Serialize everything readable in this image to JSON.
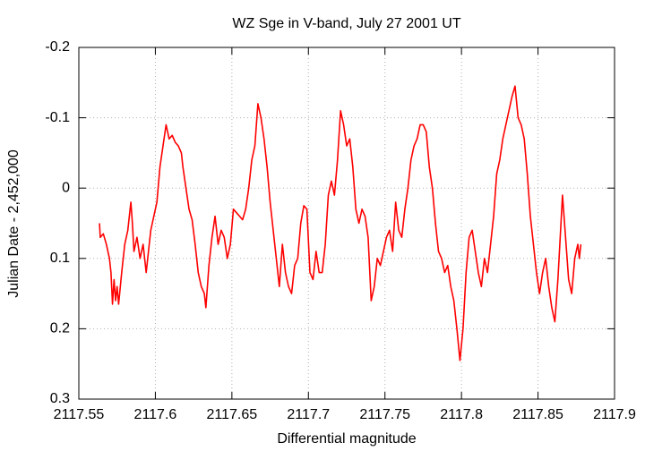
{
  "chart_data": {
    "type": "line",
    "title": "WZ Sge in V-band, July 27 2001 UT",
    "xlabel": "Differential magnitude",
    "ylabel": "Julian Date - 2,452,000",
    "xlim": [
      2117.55,
      2117.9
    ],
    "xticks": [
      2117.55,
      2117.6,
      2117.65,
      2117.7,
      2117.75,
      2117.8,
      2117.85,
      2117.9
    ],
    "ylim": [
      -0.2,
      0.3
    ],
    "yticks": [
      -0.2,
      -0.1,
      0,
      0.1,
      0.2,
      0.3
    ],
    "y_reversed": true,
    "grid": true,
    "x": [
      2117.5635,
      2117.564,
      2117.566,
      2117.568,
      2117.57,
      2117.571,
      2117.572,
      2117.573,
      2117.574,
      2117.575,
      2117.576,
      2117.578,
      2117.58,
      2117.582,
      2117.583,
      2117.584,
      2117.585,
      2117.586,
      2117.588,
      2117.59,
      2117.592,
      2117.594,
      2117.595,
      2117.597,
      2117.599,
      2117.601,
      2117.603,
      2117.605,
      2117.607,
      2117.609,
      2117.611,
      2117.613,
      2117.615,
      2117.617,
      2117.618,
      2117.62,
      2117.622,
      2117.624,
      2117.626,
      2117.628,
      2117.63,
      2117.632,
      2117.633,
      2117.635,
      2117.637,
      2117.639,
      2117.641,
      2117.643,
      2117.645,
      2117.647,
      2117.649,
      2117.651,
      2117.653,
      2117.655,
      2117.657,
      2117.659,
      2117.661,
      2117.663,
      2117.665,
      2117.667,
      2117.669,
      2117.671,
      2117.673,
      2117.675,
      2117.677,
      2117.679,
      2117.681,
      2117.683,
      2117.685,
      2117.687,
      2117.689,
      2117.691,
      2117.693,
      2117.695,
      2117.697,
      2117.699,
      2117.701,
      2117.703,
      2117.705,
      2117.707,
      2117.709,
      2117.711,
      2117.713,
      2117.715,
      2117.717,
      2117.719,
      2117.721,
      2117.723,
      2117.725,
      2117.727,
      2117.729,
      2117.731,
      2117.733,
      2117.735,
      2117.737,
      2117.739,
      2117.741,
      2117.743,
      2117.745,
      2117.747,
      2117.749,
      2117.751,
      2117.753,
      2117.755,
      2117.757,
      2117.759,
      2117.761,
      2117.763,
      2117.765,
      2117.767,
      2117.769,
      2117.771,
      2117.773,
      2117.775,
      2117.777,
      2117.779,
      2117.781,
      2117.783,
      2117.785,
      2117.787,
      2117.789,
      2117.791,
      2117.793,
      2117.795,
      2117.797,
      2117.799,
      2117.801,
      2117.803,
      2117.805,
      2117.807,
      2117.809,
      2117.811,
      2117.813,
      2117.815,
      2117.817,
      2117.819,
      2117.821,
      2117.823,
      2117.825,
      2117.827,
      2117.829,
      2117.831,
      2117.833,
      2117.835,
      2117.837,
      2117.839,
      2117.841,
      2117.843,
      2117.845,
      2117.847,
      2117.849,
      2117.851,
      2117.853,
      2117.855,
      2117.857,
      2117.859,
      2117.861,
      2117.863,
      2117.865,
      2117.866,
      2117.868,
      2117.87,
      2117.872,
      2117.874,
      2117.876,
      2117.877,
      2117.878
    ],
    "series": [
      {
        "color": "#ff0000",
        "values": [
          0.05,
          0.07,
          0.065,
          0.08,
          0.1,
          0.12,
          0.165,
          0.13,
          0.16,
          0.14,
          0.165,
          0.12,
          0.08,
          0.06,
          0.04,
          0.02,
          0.05,
          0.09,
          0.07,
          0.1,
          0.08,
          0.12,
          0.1,
          0.06,
          0.04,
          0.02,
          -0.03,
          -0.06,
          -0.09,
          -0.07,
          -0.075,
          -0.065,
          -0.06,
          -0.05,
          -0.03,
          0.0,
          0.03,
          0.045,
          0.08,
          0.12,
          0.14,
          0.15,
          0.17,
          0.11,
          0.07,
          0.04,
          0.08,
          0.06,
          0.07,
          0.1,
          0.08,
          0.03,
          0.035,
          0.04,
          0.045,
          0.03,
          0.0,
          -0.04,
          -0.06,
          -0.12,
          -0.1,
          -0.07,
          -0.03,
          0.02,
          0.06,
          0.1,
          0.14,
          0.08,
          0.12,
          0.14,
          0.15,
          0.11,
          0.1,
          0.05,
          0.025,
          0.03,
          0.12,
          0.13,
          0.09,
          0.12,
          0.12,
          0.08,
          0.01,
          -0.01,
          0.01,
          -0.04,
          -0.11,
          -0.09,
          -0.06,
          -0.07,
          -0.03,
          0.03,
          0.05,
          0.03,
          0.04,
          0.07,
          0.16,
          0.14,
          0.1,
          0.11,
          0.09,
          0.07,
          0.06,
          0.09,
          0.02,
          0.06,
          0.07,
          0.03,
          0.0,
          -0.04,
          -0.06,
          -0.07,
          -0.09,
          -0.09,
          -0.08,
          -0.03,
          0.0,
          0.05,
          0.09,
          0.1,
          0.12,
          0.11,
          0.14,
          0.16,
          0.2,
          0.245,
          0.2,
          0.12,
          0.07,
          0.06,
          0.09,
          0.12,
          0.14,
          0.1,
          0.12,
          0.08,
          0.04,
          -0.02,
          -0.04,
          -0.07,
          -0.09,
          -0.11,
          -0.13,
          -0.145,
          -0.1,
          -0.09,
          -0.07,
          -0.02,
          0.04,
          0.08,
          0.12,
          0.15,
          0.12,
          0.1,
          0.14,
          0.17,
          0.19,
          0.13,
          0.05,
          0.01,
          0.07,
          0.13,
          0.15,
          0.1,
          0.08,
          0.1,
          0.08
        ]
      }
    ]
  }
}
